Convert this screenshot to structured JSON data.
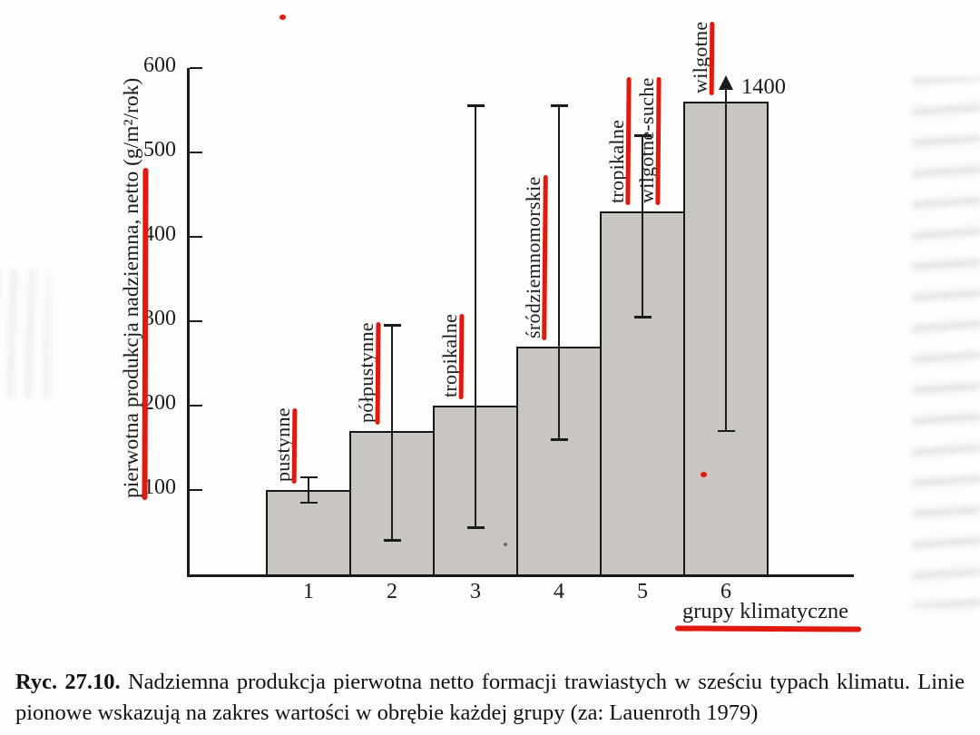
{
  "page": {
    "background": "#fdfdfc"
  },
  "chart_data": {
    "type": "bar",
    "title": "",
    "ylabel": "pierwotna produkcja nadziemna, netto (g/m²/rok)",
    "xlabel": "grupy klimatyczne",
    "ylim": [
      0,
      600
    ],
    "yticks": [
      100,
      200,
      300,
      400,
      500,
      600
    ],
    "categories": [
      "1",
      "2",
      "3",
      "4",
      "5",
      "6"
    ],
    "bar_labels": [
      [
        "pustynne"
      ],
      [
        "półpustynne"
      ],
      [
        "tropikalne"
      ],
      [
        "śródziemnomorskie"
      ],
      [
        "tropikalne",
        "wilgotne-suche"
      ],
      [
        "wilgotne"
      ]
    ],
    "values": [
      100,
      170,
      200,
      270,
      430,
      560
    ],
    "ranges": [
      [
        85,
        115
      ],
      [
        40,
        295
      ],
      [
        55,
        555
      ],
      [
        160,
        555
      ],
      [
        305,
        520
      ],
      [
        170,
        1400
      ]
    ],
    "range_clip_label": "1400",
    "grid": false,
    "legend": null,
    "bar_fill": "#c9c6c2",
    "line_color": "#1b1b1b"
  },
  "caption": {
    "figure_number": "Ryc. 27.10.",
    "line1": "Nadziemna produkcja pierwotna netto formacji trawiastych w sześciu typach klimatu. Linie",
    "line2": "pionowe wskazują na zakres wartości w obrębie każdej grupy (za: Lauenroth 1979)"
  },
  "red_pen_annotations": {
    "color": "#e2190f",
    "underlined": [
      "y-axis label",
      "x-axis label",
      "pustynne",
      "półpustynne",
      "tropikalne",
      "śródziemnomorskie",
      "tropikalne wilgotne-suche",
      "wilgotne"
    ],
    "stray_dots": 2
  }
}
